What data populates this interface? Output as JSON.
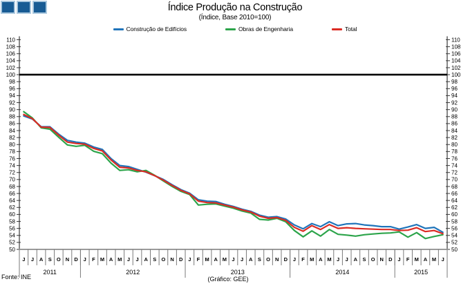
{
  "header": {
    "title": "Índice Produção na Construção",
    "subtitle": "(Índice, Base 2010=100)"
  },
  "logo": {
    "fill": "#185B94",
    "border": "#A9C7DE"
  },
  "legend": {
    "items": [
      {
        "label": "Construção de Edifícios",
        "color": "#1F74BA"
      },
      {
        "label": "Obras de Engenharia",
        "color": "#2CA44A"
      },
      {
        "label": "Total",
        "color": "#DB2B23"
      }
    ]
  },
  "footer": {
    "source": "Fonte: INE",
    "credit": "(Gráfico: GEE)"
  },
  "chart_data": {
    "type": "line",
    "title": "Índice Produção na Construção",
    "subtitle": "(Índice, Base 2010=100)",
    "ylim": [
      50,
      110
    ],
    "ytick_step": 2,
    "reference_line": 100,
    "grid": false,
    "legend_position": "top",
    "x_months": [
      "J",
      "J",
      "A",
      "S",
      "O",
      "N",
      "D",
      "J",
      "F",
      "M",
      "A",
      "M",
      "J",
      "J",
      "A",
      "S",
      "O",
      "N",
      "D",
      "J",
      "F",
      "M",
      "A",
      "M",
      "J",
      "J",
      "A",
      "S",
      "O",
      "N",
      "D",
      "J",
      "F",
      "M",
      "A",
      "M",
      "J",
      "J",
      "A",
      "S",
      "O",
      "N",
      "D",
      "J",
      "F",
      "M",
      "A",
      "M",
      "J"
    ],
    "years": [
      {
        "label": "2011",
        "months": 7
      },
      {
        "label": "2012",
        "months": 12
      },
      {
        "label": "2013",
        "months": 12
      },
      {
        "label": "2014",
        "months": 12
      },
      {
        "label": "2015",
        "months": 6
      }
    ],
    "series": [
      {
        "name": "Construção de Edifícios",
        "color": "#1F74BA",
        "values": [
          88.2,
          87.3,
          85.1,
          85.1,
          83.0,
          81.2,
          80.7,
          80.4,
          79.3,
          78.6,
          76.0,
          74.0,
          73.7,
          72.9,
          72.1,
          71.1,
          70.0,
          68.5,
          67.1,
          66.1,
          64.2,
          63.8,
          63.7,
          62.9,
          62.3,
          61.5,
          60.9,
          59.8,
          59.2,
          59.4,
          58.7,
          57.0,
          55.9,
          57.4,
          56.5,
          57.9,
          56.8,
          57.3,
          57.4,
          57.0,
          56.8,
          56.5,
          56.5,
          55.8,
          56.4,
          57.1,
          56.0,
          56.3,
          54.9
        ]
      },
      {
        "name": "Obras de Engenharia",
        "color": "#2CA44A",
        "values": [
          89.4,
          87.6,
          84.8,
          84.4,
          82.1,
          79.9,
          79.5,
          79.8,
          78.1,
          77.4,
          74.7,
          72.6,
          72.8,
          72.2,
          72.6,
          71.2,
          69.6,
          68.0,
          66.6,
          65.7,
          62.7,
          62.9,
          63.0,
          62.4,
          61.8,
          61.0,
          60.4,
          58.6,
          58.4,
          58.9,
          57.9,
          55.4,
          53.6,
          55.3,
          53.8,
          55.7,
          54.3,
          54.1,
          53.8,
          54.2,
          54.4,
          54.6,
          54.7,
          55.0,
          53.5,
          54.8,
          53.1,
          53.7,
          54.2
        ]
      },
      {
        "name": "Total",
        "color": "#DB2B23",
        "values": [
          88.6,
          87.4,
          85.0,
          84.9,
          82.7,
          80.7,
          80.3,
          80.1,
          78.9,
          78.2,
          75.6,
          73.5,
          73.3,
          72.6,
          72.2,
          71.1,
          69.8,
          68.3,
          66.9,
          65.9,
          63.8,
          63.4,
          63.3,
          62.7,
          62.1,
          61.3,
          60.7,
          59.5,
          58.9,
          59.1,
          58.3,
          56.3,
          55.2,
          56.8,
          55.7,
          57.1,
          56.0,
          56.2,
          56.0,
          55.9,
          55.8,
          55.7,
          55.7,
          55.4,
          55.5,
          56.2,
          55.1,
          55.4,
          54.5
        ]
      }
    ]
  }
}
